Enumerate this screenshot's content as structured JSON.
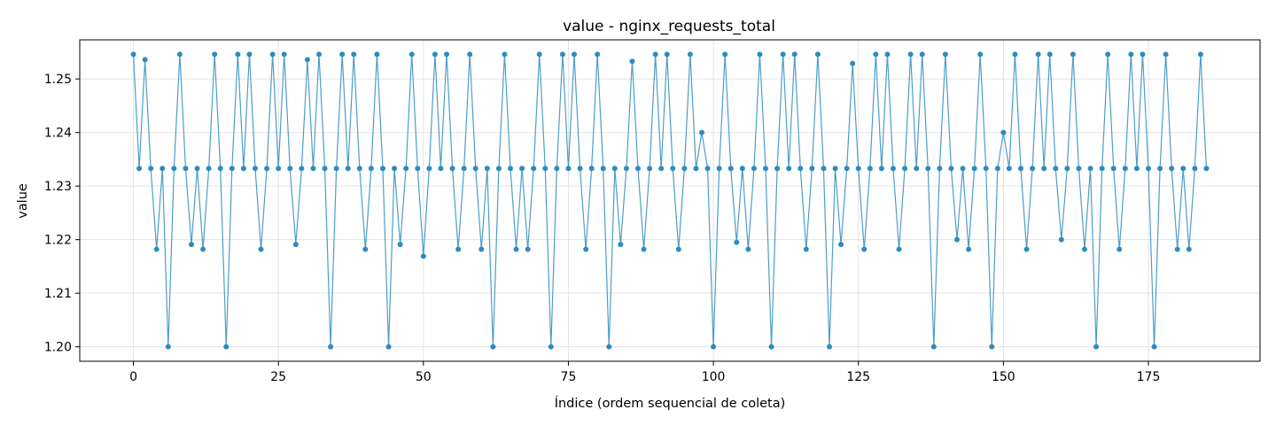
{
  "chart_data": {
    "type": "line",
    "title": "value - nginx_requests_total",
    "xlabel": "Índice (ordem sequencial de coleta)",
    "ylabel": "value",
    "xlim": [
      -9.25,
      194.25
    ],
    "ylim": [
      1.1973,
      1.2573
    ],
    "xticks": [
      0,
      25,
      50,
      75,
      100,
      125,
      150,
      175
    ],
    "xtick_labels": [
      "0",
      "25",
      "50",
      "75",
      "100",
      "125",
      "150",
      "175"
    ],
    "yticks": [
      1.2,
      1.21,
      1.22,
      1.23,
      1.24,
      1.25
    ],
    "ytick_labels": [
      "1.20",
      "1.21",
      "1.22",
      "1.23",
      "1.24",
      "1.25"
    ],
    "grid": true,
    "line_color": "#3a93c3",
    "series": [
      {
        "values": [
          1.2546,
          1.2333,
          1.2536,
          1.2333,
          1.2182,
          1.2333,
          1.2,
          1.2333,
          1.2546,
          1.2333,
          1.2191,
          1.2333,
          1.2182,
          1.2333,
          1.2546,
          1.2333,
          1.2,
          1.2333,
          1.2546,
          1.2333,
          1.2546,
          1.2333,
          1.2182,
          1.2333,
          1.2546,
          1.2333,
          1.2546,
          1.2333,
          1.2191,
          1.2333,
          1.2536,
          1.2333,
          1.2546,
          1.2333,
          1.2,
          1.2333,
          1.2546,
          1.2333,
          1.2546,
          1.2333,
          1.2182,
          1.2333,
          1.2546,
          1.2333,
          1.2,
          1.2333,
          1.2191,
          1.2333,
          1.2546,
          1.2333,
          1.2169,
          1.2333,
          1.2546,
          1.2333,
          1.2546,
          1.2333,
          1.2182,
          1.2333,
          1.2546,
          1.2333,
          1.2182,
          1.2333,
          1.2,
          1.2333,
          1.2546,
          1.2333,
          1.2182,
          1.2333,
          1.2182,
          1.2333,
          1.2546,
          1.2333,
          1.2,
          1.2333,
          1.2546,
          1.2333,
          1.2546,
          1.2333,
          1.2182,
          1.2333,
          1.2546,
          1.2333,
          1.2,
          1.2333,
          1.2191,
          1.2333,
          1.2533,
          1.2333,
          1.2182,
          1.2333,
          1.2546,
          1.2333,
          1.2546,
          1.2333,
          1.2182,
          1.2333,
          1.2546,
          1.2333,
          1.24,
          1.2333,
          1.2,
          1.2333,
          1.2546,
          1.2333,
          1.2195,
          1.2333,
          1.2182,
          1.2333,
          1.2546,
          1.2333,
          1.2,
          1.2333,
          1.2546,
          1.2333,
          1.2546,
          1.2333,
          1.2182,
          1.2333,
          1.2546,
          1.2333,
          1.2,
          1.2333,
          1.2191,
          1.2333,
          1.2529,
          1.2333,
          1.2182,
          1.2333,
          1.2546,
          1.2333,
          1.2546,
          1.2333,
          1.2182,
          1.2333,
          1.2546,
          1.2333,
          1.2546,
          1.2333,
          1.2,
          1.2333,
          1.2546,
          1.2333,
          1.22,
          1.2333,
          1.2182,
          1.2333,
          1.2546,
          1.2333,
          1.2,
          1.2333,
          1.24,
          1.2333,
          1.2546,
          1.2333,
          1.2182,
          1.2333,
          1.2546,
          1.2333,
          1.2546,
          1.2333,
          1.22,
          1.2333,
          1.2546,
          1.2333,
          1.2182,
          1.2333,
          1.2,
          1.2333,
          1.2546,
          1.2333,
          1.2182,
          1.2333,
          1.2546,
          1.2333,
          1.2546,
          1.2333,
          1.2,
          1.2333,
          1.2546,
          1.2333,
          1.2182,
          1.2333,
          1.2182,
          1.2333,
          1.2546,
          1.2333
        ]
      }
    ]
  }
}
